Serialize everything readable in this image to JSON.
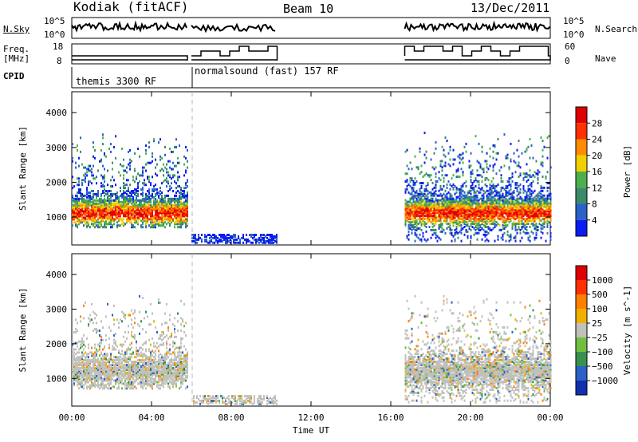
{
  "header": {
    "title": "Kodiak (fitACF)",
    "beam": "Beam 10",
    "date": "13/Dec/2011"
  },
  "status_panel": {
    "nsky_label": "N.Sky",
    "nsearch_label": "N.Search",
    "freq_label_1": "Freq.",
    "freq_label_2": "[MHz]",
    "nave_label": "Nave",
    "cpid_label": "CPID",
    "noise_ticks_left": [
      "10^5",
      "10^0"
    ],
    "noise_ticks_right": [
      "10^5",
      "10^0"
    ],
    "freq_ticks": [
      "18",
      "8"
    ],
    "nave_ticks": [
      "60",
      "0"
    ],
    "cpid_modes": [
      "themis 3300 RF",
      "normalsound (fast) 157 RF"
    ]
  },
  "chart_data": [
    {
      "type": "heatmap",
      "panel": "power",
      "ylabel": "Slant Range [km]",
      "yticks": [
        1000,
        2000,
        3000,
        4000
      ],
      "ylim": [
        200,
        4600
      ],
      "xlim": [
        0,
        24
      ],
      "colorbar": {
        "label": "Power [dB]",
        "ticks": [
          4,
          8,
          12,
          16,
          20,
          24,
          28
        ],
        "colors": [
          "#0a1cf0",
          "#2a62c8",
          "#3d8a6a",
          "#4bb04c",
          "#f0d000",
          "#ff8c00",
          "#ff3000",
          "#e00000"
        ]
      },
      "data_segments": [
        {
          "start_ut": 0.0,
          "end_ut": 5.8,
          "range_min_km": 700,
          "range_max_km": 3400,
          "dominant_power_db": 16
        },
        {
          "start_ut": 6.0,
          "end_ut": 10.3,
          "range_min_km": 250,
          "range_max_km": 500,
          "dominant_power_db": 6
        },
        {
          "start_ut": 16.7,
          "end_ut": 24.0,
          "range_min_km": 300,
          "range_max_km": 3500,
          "dominant_power_db": 20
        }
      ]
    },
    {
      "type": "heatmap",
      "panel": "velocity",
      "ylabel": "Slant Range [km]",
      "yticks": [
        1000,
        2000,
        3000,
        4000
      ],
      "ylim": [
        200,
        4600
      ],
      "xlim": [
        0,
        24
      ],
      "xticks": [
        "00:00",
        "04:00",
        "08:00",
        "12:00",
        "16:00",
        "20:00",
        "00:00"
      ],
      "xlabel": "Time UT",
      "colorbar": {
        "label": "Velocity [m s^-1]",
        "ticks": [
          "1000",
          "500",
          "100",
          "25",
          "−25",
          "−100",
          "−500",
          "−1000"
        ],
        "colors": [
          "#1030b0",
          "#2a62c8",
          "#3a9050",
          "#70c040",
          "#c0c0bc",
          "#f0b000",
          "#ff8000",
          "#ff3000",
          "#e00000"
        ]
      },
      "data_segments": [
        {
          "start_ut": 0.0,
          "end_ut": 5.8,
          "range_min_km": 700,
          "range_max_km": 3400,
          "dominant_velocity_ms": 0
        },
        {
          "start_ut": 6.0,
          "end_ut": 10.3,
          "range_min_km": 250,
          "range_max_km": 500,
          "dominant_velocity_ms": 0
        },
        {
          "start_ut": 16.7,
          "end_ut": 24.0,
          "range_min_km": 300,
          "range_max_km": 3500,
          "dominant_velocity_ms": 0
        }
      ]
    }
  ]
}
